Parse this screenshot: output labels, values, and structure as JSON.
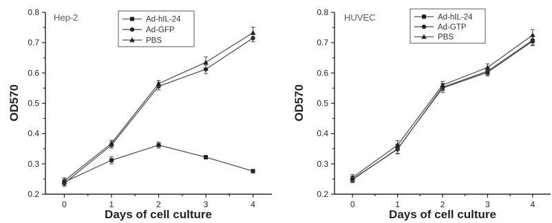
{
  "chart_data": [
    {
      "type": "line",
      "panel_label": "Hep-2",
      "xlabel": "Days of cell culture",
      "ylabel": "OD570",
      "x": [
        0,
        1,
        2,
        3,
        4
      ],
      "xlim": [
        -0.4,
        4.4
      ],
      "ylim": [
        0.2,
        0.8
      ],
      "yticks": [
        0.2,
        0.3,
        0.4,
        0.5,
        0.6,
        0.7,
        0.8
      ],
      "ytick_labels": [
        "0.2",
        "0.3",
        "0.4",
        "0.5",
        "0.6",
        "0.7",
        "0.8"
      ],
      "xtick_labels": [
        "0",
        "1",
        "2",
        "3",
        "4"
      ],
      "legend_position": "top-center",
      "series": [
        {
          "name": "Ad-hIL-24",
          "marker": "square",
          "values": [
            0.24,
            0.312,
            0.362,
            0.322,
            0.276
          ],
          "errors": [
            0.01,
            0.012,
            0.01,
            0.006,
            0.006
          ]
        },
        {
          "name": "Ad-GFP",
          "marker": "circle",
          "values": [
            0.236,
            0.362,
            0.556,
            0.612,
            0.715
          ],
          "errors": [
            0.01,
            0.01,
            0.012,
            0.014,
            0.012
          ]
        },
        {
          "name": "PBS",
          "marker": "triangle",
          "values": [
            0.244,
            0.368,
            0.565,
            0.635,
            0.733
          ],
          "errors": [
            0.01,
            0.01,
            0.01,
            0.018,
            0.018
          ]
        }
      ]
    },
    {
      "type": "line",
      "panel_label": "HUVEC",
      "xlabel": "Days of cell culture",
      "ylabel": "OD570",
      "x": [
        0,
        1,
        2,
        3,
        4
      ],
      "xlim": [
        -0.4,
        4.4
      ],
      "ylim": [
        0.2,
        0.8
      ],
      "yticks": [
        0.2,
        0.3,
        0.4,
        0.5,
        0.6,
        0.7,
        0.8
      ],
      "ytick_labels": [
        "0.2",
        "0.3",
        "0.4",
        "0.5",
        "0.6",
        "0.7",
        "0.8"
      ],
      "xtick_labels": [
        "0",
        "1",
        "2",
        "3",
        "4"
      ],
      "legend_position": "top-center",
      "series": [
        {
          "name": "Ad-hIL-24",
          "marker": "square",
          "values": [
            0.248,
            0.35,
            0.55,
            0.602,
            0.705
          ],
          "errors": [
            0.01,
            0.015,
            0.015,
            0.012,
            0.015
          ]
        },
        {
          "name": "Ad-GTP",
          "marker": "circle",
          "values": [
            0.25,
            0.348,
            0.553,
            0.606,
            0.708
          ],
          "errors": [
            0.01,
            0.015,
            0.012,
            0.012,
            0.015
          ]
        },
        {
          "name": "PBS",
          "marker": "triangle",
          "values": [
            0.255,
            0.362,
            0.56,
            0.618,
            0.725
          ],
          "errors": [
            0.01,
            0.015,
            0.012,
            0.012,
            0.018
          ]
        }
      ]
    }
  ]
}
